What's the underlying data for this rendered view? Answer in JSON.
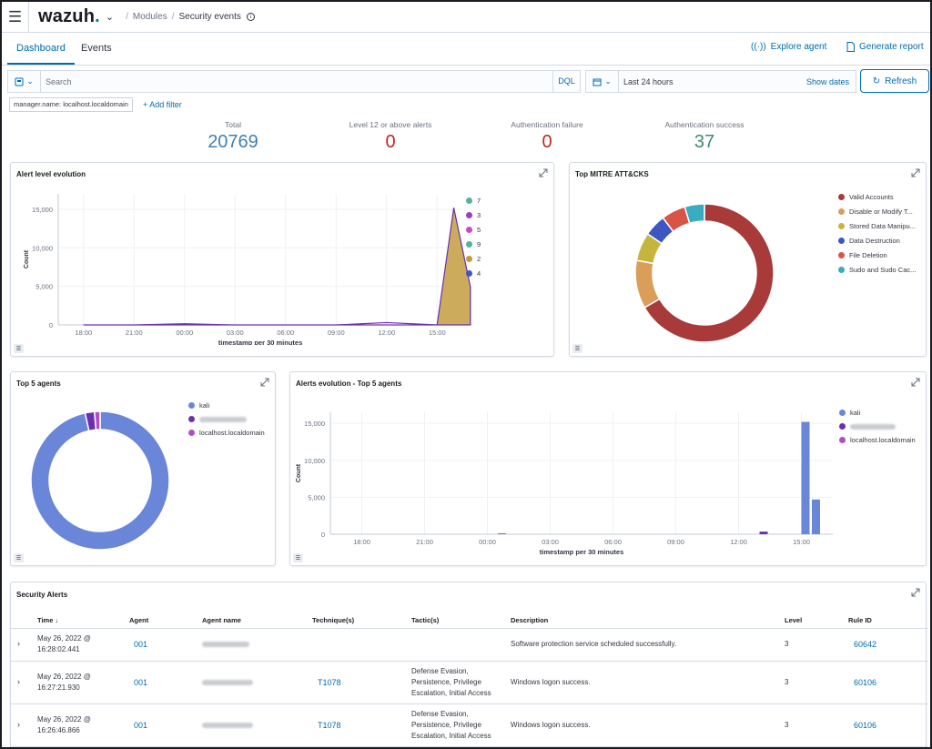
{
  "header": {
    "brand": "wazuh",
    "breadcrumb_modules": "Modules",
    "breadcrumb_current": "Security events"
  },
  "tabs": [
    {
      "label": "Dashboard",
      "active": true
    },
    {
      "label": "Events",
      "active": false
    }
  ],
  "header_actions": {
    "explore_agent": "Explore agent",
    "generate_report": "Generate report"
  },
  "search": {
    "placeholder": "Search",
    "language": "DQL"
  },
  "date_picker": {
    "range": "Last 24 hours",
    "show_dates": "Show dates"
  },
  "refresh_label": "Refresh",
  "filters": {
    "pill": "manager.name: localhost.localdomain",
    "add_filter": "+ Add filter"
  },
  "kpis": [
    {
      "label": "Total",
      "value": "20769",
      "color": "#3f7fb3"
    },
    {
      "label": "Level 12 or above alerts",
      "value": "0",
      "color": "#bd271e"
    },
    {
      "label": "Authentication failure",
      "value": "0",
      "color": "#bd271e"
    },
    {
      "label": "Authentication success",
      "value": "37",
      "color": "#3b8c6e"
    }
  ],
  "panels": {
    "alert_level_evolution": {
      "title": "Alert level evolution",
      "ylabel": "Count",
      "xlabel": "timestamp per 30 minutes",
      "yticks": [
        "15,000",
        "10,000",
        "5,000",
        "0"
      ],
      "xticks": [
        "18:00",
        "21:00",
        "00:00",
        "03:00",
        "06:00",
        "09:00",
        "12:00",
        "15:00"
      ],
      "legend": [
        {
          "name": "7",
          "color": "#54b399"
        },
        {
          "name": "3",
          "color": "#6092c0"
        },
        {
          "name": "5",
          "color": "#d36086"
        },
        {
          "name": "9",
          "color": "#54b399"
        },
        {
          "name": "2",
          "color": "#d6bf57"
        },
        {
          "name": "4",
          "color": "#6092c0"
        }
      ]
    },
    "top_mitre": {
      "title": "Top MITRE ATT&CKS",
      "legend": [
        {
          "name": "Valid Accounts",
          "color": "#a83a3a"
        },
        {
          "name": "Disable or Modify T...",
          "color": "#da9d5a"
        },
        {
          "name": "Stored Data Manipu...",
          "color": "#c5b53d"
        },
        {
          "name": "Data Destruction",
          "color": "#3e56c1"
        },
        {
          "name": "File Deletion",
          "color": "#d75446"
        },
        {
          "name": "Sudo and Sudo Cac...",
          "color": "#3aacbf"
        }
      ]
    },
    "top_agents": {
      "title": "Top 5 agents",
      "legend": [
        {
          "name": "kali",
          "color": "#6a86d8"
        },
        {
          "name": "",
          "color": "#6b2fb0"
        },
        {
          "name": "localhost.localdomain",
          "color": "#b24ec4"
        }
      ]
    },
    "alerts_evolution_agents": {
      "title": "Alerts evolution - Top 5 agents",
      "ylabel": "Count",
      "xlabel": "timestamp per 30 minutes",
      "yticks": [
        "15,000",
        "10,000",
        "5,000",
        "0"
      ],
      "xticks": [
        "18:00",
        "21:00",
        "00:00",
        "03:00",
        "06:00",
        "09:00",
        "12:00",
        "15:00"
      ],
      "legend": [
        {
          "name": "kali",
          "color": "#6a86d8"
        },
        {
          "name": "",
          "color": "#6b2fb0"
        },
        {
          "name": "localhost.localdomain",
          "color": "#b24ec4"
        }
      ]
    }
  },
  "security_alerts": {
    "title": "Security Alerts",
    "columns": [
      "Time",
      "Agent",
      "Agent name",
      "Technique(s)",
      "Tactic(s)",
      "Description",
      "Level",
      "Rule ID"
    ],
    "rows": [
      {
        "time1": "May 26, 2022 @",
        "time2": "16:28:02.441",
        "agent": "001",
        "technique": "",
        "tactic1": "",
        "tactic2": "",
        "tactic3": "",
        "description": "Software protection service scheduled successfully.",
        "level": "3",
        "rule_id": "60642"
      },
      {
        "time1": "May 26, 2022 @",
        "time2": "16:27:21.930",
        "agent": "001",
        "technique": "T1078",
        "tactic1": "Defense Evasion,",
        "tactic2": "Persistence, Privilege",
        "tactic3": "Escalation, Initial Access",
        "description": "Windows logon success.",
        "level": "3",
        "rule_id": "60106"
      },
      {
        "time1": "May 26, 2022 @",
        "time2": "16:26:46.866",
        "agent": "001",
        "technique": "T1078",
        "tactic1": "Defense Evasion,",
        "tactic2": "Persistence, Privilege",
        "tactic3": "Escalation, Initial Access",
        "description": "Windows logon success.",
        "level": "3",
        "rule_id": "60106"
      }
    ]
  },
  "chart_data": [
    {
      "type": "area",
      "title": "Alert level evolution",
      "xlabel": "timestamp per 30 minutes",
      "ylabel": "Count",
      "ylim": [
        0,
        17000
      ],
      "x": [
        "18:00",
        "21:00",
        "00:00",
        "03:00",
        "06:00",
        "09:00",
        "12:00",
        "15:00",
        "15:30",
        "16:00"
      ],
      "series": [
        {
          "name": "2",
          "values": [
            0,
            0,
            0,
            0,
            0,
            0,
            0,
            0,
            15000,
            4800
          ]
        },
        {
          "name": "3",
          "values": [
            0,
            0,
            150,
            0,
            0,
            0,
            300,
            0,
            15200,
            4900
          ]
        }
      ]
    },
    {
      "type": "pie",
      "title": "Top MITRE ATT&CKS",
      "categories": [
        "Valid Accounts",
        "Disable or Modify T...",
        "Stored Data Manipu...",
        "Data Destruction",
        "File Deletion",
        "Sudo and Sudo Cac..."
      ],
      "values": [
        65,
        11,
        6.5,
        5,
        5.5,
        4.5
      ]
    },
    {
      "type": "pie",
      "title": "Top 5 agents",
      "categories": [
        "kali",
        "",
        "localhost.localdomain"
      ],
      "values": [
        96.5,
        2.2,
        1.3
      ]
    },
    {
      "type": "bar",
      "title": "Alerts evolution - Top 5 agents",
      "xlabel": "timestamp per 30 minutes",
      "ylabel": "Count",
      "ylim": [
        0,
        16500
      ],
      "series": [
        {
          "name": "kali",
          "points": [
            {
              "x": "15:00",
              "y": 15200
            },
            {
              "x": "15:30",
              "y": 4700
            }
          ]
        },
        {
          "name": "",
          "points": [
            {
              "x": "13:00",
              "y": 350
            }
          ]
        },
        {
          "name": "localhost.localdomain",
          "points": [
            {
              "x": "00:30",
              "y": 120
            }
          ]
        }
      ]
    }
  ]
}
